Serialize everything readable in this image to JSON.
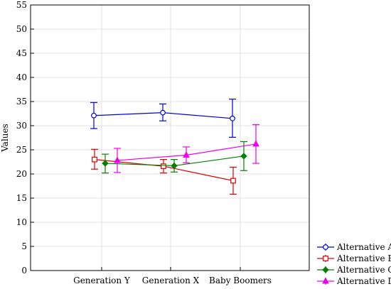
{
  "chart_data": {
    "type": "line",
    "title": "",
    "xlabel": "",
    "ylabel": "Values",
    "ylim": [
      0,
      55
    ],
    "yticks": [
      0,
      5,
      10,
      15,
      20,
      25,
      30,
      35,
      40,
      45,
      50,
      55
    ],
    "grid": true,
    "legend_position": "bottom-right",
    "categories": [
      "Generation Y",
      "Generation X",
      "Baby Boomers"
    ],
    "error_bars": true,
    "series": [
      {
        "name": "Alternative A",
        "color": "#0000e0",
        "marker": "circle",
        "values": [
          32.1,
          32.7,
          31.5
        ],
        "lower": [
          29.4,
          31.0,
          27.6
        ],
        "upper": [
          34.8,
          34.5,
          35.5
        ]
      },
      {
        "name": "Alternative B",
        "color": "#e00000",
        "marker": "square",
        "values": [
          23.0,
          21.6,
          18.6
        ],
        "lower": [
          21.0,
          20.2,
          15.8
        ],
        "upper": [
          25.1,
          23.0,
          21.4
        ]
      },
      {
        "name": "Alternative C",
        "color": "#008000",
        "marker": "diamond",
        "values": [
          22.2,
          21.7,
          23.7
        ],
        "lower": [
          20.2,
          20.4,
          20.7
        ],
        "upper": [
          24.1,
          23.0,
          26.7
        ]
      },
      {
        "name": "Alternative D",
        "color": "#ee00ee",
        "marker": "triangle",
        "values": [
          22.8,
          23.9,
          26.2
        ],
        "lower": [
          20.3,
          22.3,
          22.2
        ],
        "upper": [
          25.3,
          25.6,
          30.2
        ]
      }
    ]
  }
}
